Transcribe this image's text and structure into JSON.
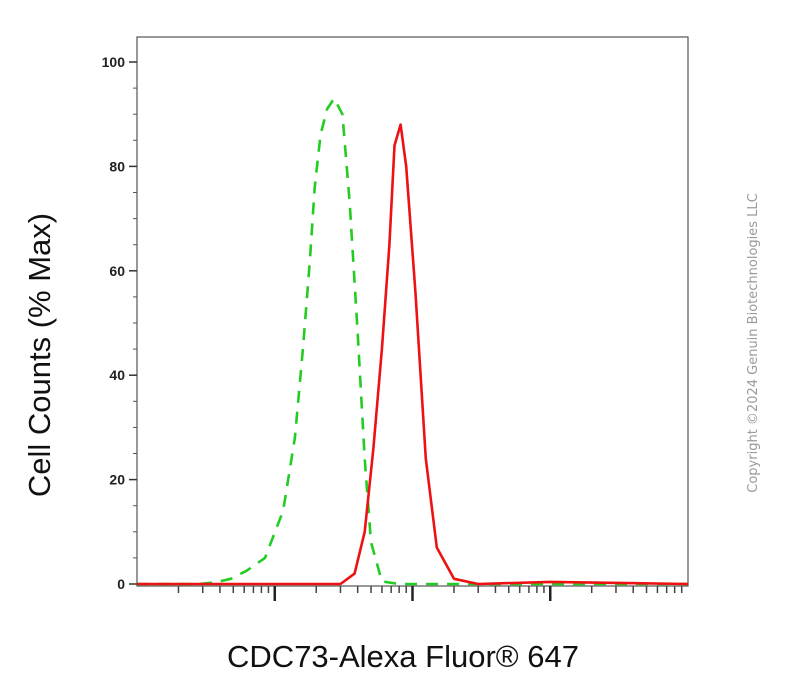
{
  "chart_data": {
    "type": "line",
    "xlabel": "CDC73-Alexa Fluor® 647",
    "ylabel": "Cell Counts (% Max)",
    "ylim": [
      0,
      100
    ],
    "yticks": [
      0,
      20,
      40,
      60,
      80,
      100
    ],
    "xscale": "log",
    "xlim": [
      100,
      1000000
    ],
    "xmajor_ticks": [
      1000,
      10000,
      100000
    ],
    "grid": false,
    "series": [
      {
        "style": "dashed",
        "color": "#22cc22",
        "x": [
          100,
          280,
          370,
          480,
          620,
          850,
          1150,
          1400,
          1600,
          1800,
          1950,
          2150,
          2400,
          2700,
          3100,
          3500,
          4000,
          4500,
          5000,
          6000,
          8000,
          10000,
          15000,
          1000000
        ],
        "y": [
          0,
          0,
          0.3,
          1,
          2.5,
          5,
          14,
          28,
          45,
          62,
          76,
          86,
          91,
          93,
          90,
          73,
          48,
          24,
          8,
          0.5,
          0,
          0,
          0,
          0
        ]
      },
      {
        "style": "solid",
        "color": "#ee1111",
        "x": [
          100,
          2000,
          3000,
          3800,
          4500,
          5200,
          6000,
          6800,
          7400,
          8200,
          9000,
          10500,
          12500,
          15000,
          20000,
          30000,
          100000,
          1000000
        ],
        "y": [
          0,
          0,
          0,
          2,
          10,
          26,
          45,
          65,
          84,
          88,
          80,
          56,
          24,
          7,
          1,
          0,
          0.4,
          0
        ]
      }
    ]
  },
  "copyright": "Copyright ©2024 Genuin Biotechnologies LLC"
}
